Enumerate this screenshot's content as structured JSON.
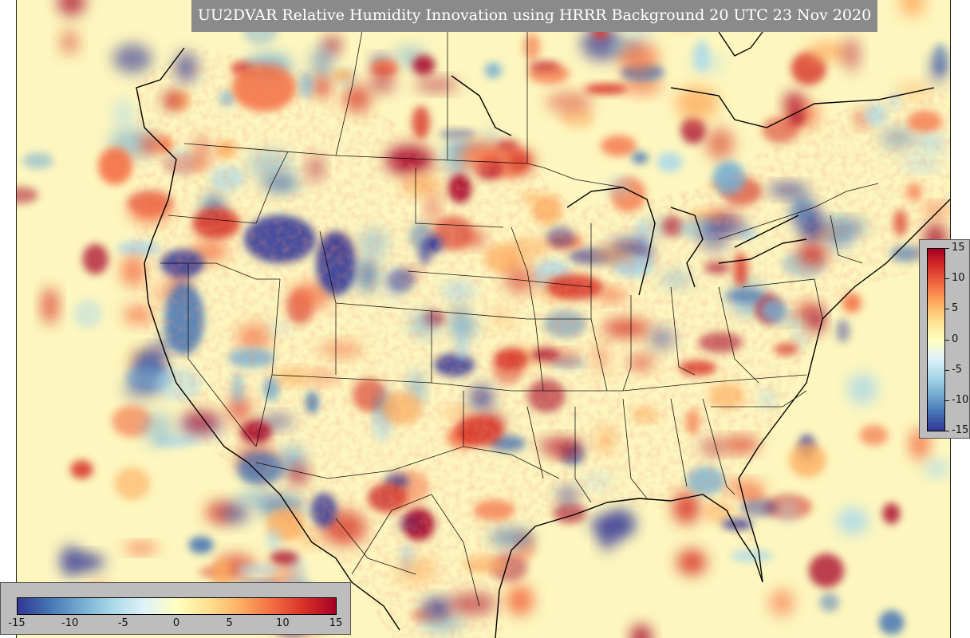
{
  "title": "UU2DVAR Relative Humidity Innovation using HRRR Background 20 UTC 23 Nov 2020",
  "colorbar": {
    "min": -15,
    "max": 15,
    "horizontal_labels": [
      "-15",
      "-10",
      "-5",
      "0",
      "5",
      "10",
      "15"
    ],
    "vertical_labels": [
      "15",
      "10",
      "5",
      "0",
      "-5",
      "-10",
      "-15"
    ],
    "colors": [
      "#313695",
      "#4575b4",
      "#74add1",
      "#abd9e9",
      "#e0f3f8",
      "#ffffbf",
      "#fee090",
      "#fdae61",
      "#f46d43",
      "#d73027",
      "#a50026"
    ]
  },
  "map": {
    "background_color": "#fdf6bf",
    "coastline_color": "#000000",
    "border_color": "#000000"
  }
}
